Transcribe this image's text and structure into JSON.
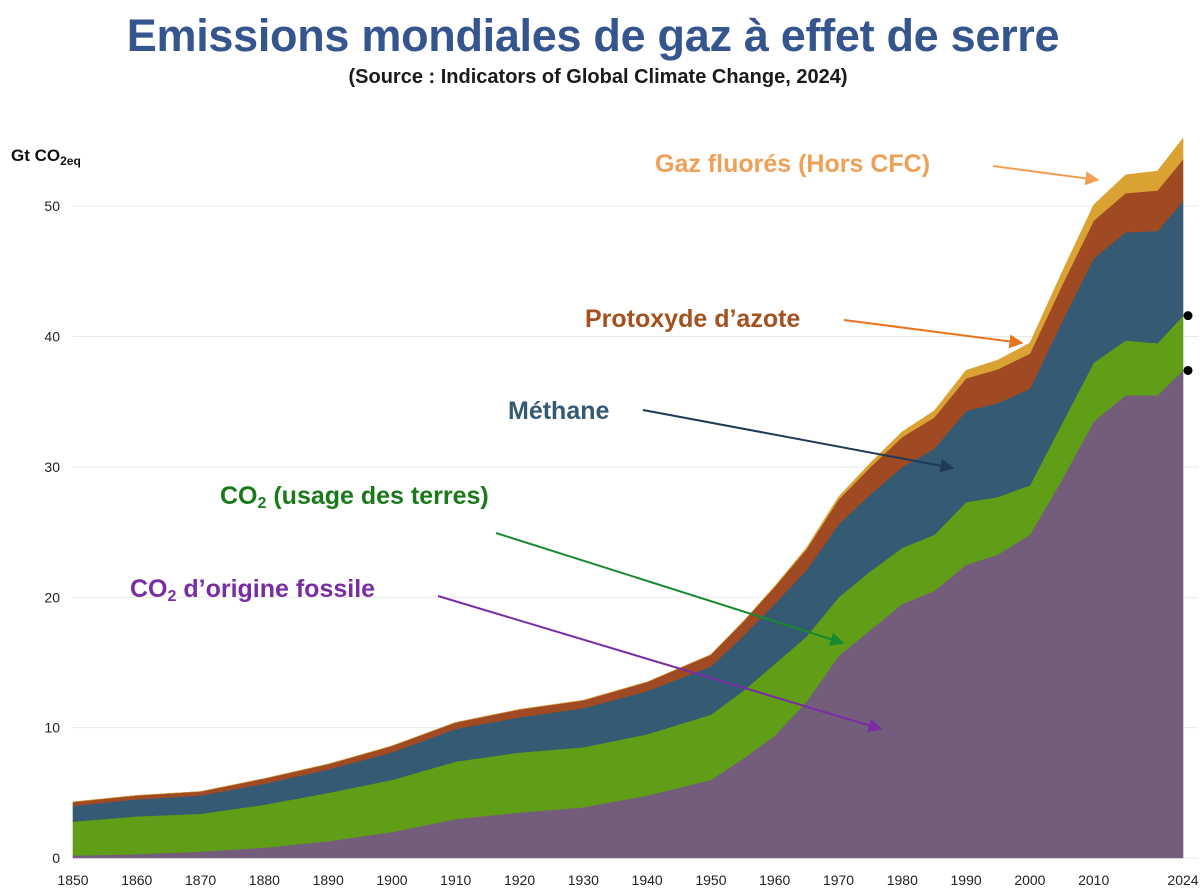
{
  "chart_data": {
    "type": "area",
    "stacked": true,
    "title": "Emissions mondiales de gaz à effet de serre",
    "subtitle": "(Source : Indicators of Global Climate Change, 2024)",
    "ylabel_main": "Gt CO",
    "ylabel_sub": "2eq",
    "ylim": [
      0,
      55
    ],
    "xlim": [
      1850,
      2024
    ],
    "x_ticks": [
      "1850",
      "1860",
      "1870",
      "1880",
      "1890",
      "1900",
      "1910",
      "1920",
      "1930",
      "1940",
      "1950",
      "1960",
      "1970",
      "1980",
      "1990",
      "2000",
      "2010",
      "2024"
    ],
    "y_ticks": [
      "0",
      "10",
      "20",
      "30",
      "40",
      "50"
    ],
    "grid": true,
    "x": [
      1850,
      1860,
      1870,
      1880,
      1890,
      1900,
      1910,
      1920,
      1930,
      1940,
      1950,
      1955,
      1960,
      1965,
      1970,
      1975,
      1980,
      1985,
      1990,
      1995,
      2000,
      2005,
      2010,
      2015,
      2020,
      2024
    ],
    "series": [
      {
        "key": "co2_fossil",
        "color": "#745d7a",
        "values": [
          0.2,
          0.3,
          0.5,
          0.8,
          1.3,
          2.0,
          3.0,
          3.5,
          3.9,
          4.8,
          6.0,
          7.6,
          9.4,
          12.0,
          15.5,
          17.5,
          19.5,
          20.5,
          22.5,
          23.3,
          24.8,
          29.0,
          33.5,
          35.5,
          35.5,
          37.4
        ]
      },
      {
        "key": "co2_land_use",
        "color": "#5f9e16",
        "values": [
          2.6,
          2.9,
          2.9,
          3.3,
          3.7,
          4.0,
          4.4,
          4.6,
          4.6,
          4.7,
          5.0,
          5.2,
          5.5,
          5.0,
          4.5,
          4.5,
          4.3,
          4.3,
          4.8,
          4.4,
          3.8,
          4.3,
          4.5,
          4.2,
          4.0,
          4.2
        ]
      },
      {
        "key": "methane",
        "color": "#355a73",
        "values": [
          1.2,
          1.3,
          1.4,
          1.6,
          1.8,
          2.1,
          2.5,
          2.7,
          3.0,
          3.3,
          3.7,
          4.2,
          4.6,
          5.1,
          5.6,
          5.9,
          6.2,
          6.6,
          7.0,
          7.2,
          7.4,
          7.8,
          8.0,
          8.3,
          8.6,
          8.8
        ]
      },
      {
        "key": "nitrous_oxide",
        "color": "#a04a24",
        "values": [
          0.3,
          0.3,
          0.3,
          0.4,
          0.4,
          0.5,
          0.5,
          0.6,
          0.6,
          0.7,
          0.9,
          1.1,
          1.3,
          1.6,
          1.9,
          2.1,
          2.3,
          2.4,
          2.5,
          2.6,
          2.7,
          2.8,
          2.9,
          3.0,
          3.1,
          3.2
        ]
      },
      {
        "key": "fluorinated_gases",
        "color": "#d9a233",
        "values": [
          0,
          0,
          0,
          0,
          0,
          0,
          0,
          0,
          0,
          0,
          0,
          0,
          0.05,
          0.1,
          0.2,
          0.3,
          0.4,
          0.5,
          0.6,
          0.7,
          0.8,
          1.0,
          1.2,
          1.4,
          1.5,
          1.6
        ]
      }
    ],
    "markers": [
      {
        "x": 2024,
        "y": 41.6,
        "color": "#000000"
      },
      {
        "x": 2024,
        "y": 37.4,
        "color": "#000000"
      }
    ]
  },
  "annotations": {
    "fluorinated": {
      "text": "Gaz fluorés (Hors CFC)",
      "color": "#f0a056",
      "arrow_color": "#f0a056"
    },
    "nitrous_oxide": {
      "text": "Protoxyde d’azote",
      "color": "#a5501f",
      "arrow_color": "#e8741f"
    },
    "methane": {
      "text": "Méthane",
      "color": "#355a73",
      "arrow_color": "#1f3a57"
    },
    "land_use": {
      "pre": "CO",
      "sub": "2",
      "post": " (usage des terres)",
      "color": "#1a7a1a",
      "arrow_color": "#178a2f"
    },
    "fossil": {
      "pre": "CO",
      "sub": "2",
      "post": " d’origine fossile",
      "color": "#7a2da3",
      "arrow_color": "#7a2da3"
    }
  }
}
